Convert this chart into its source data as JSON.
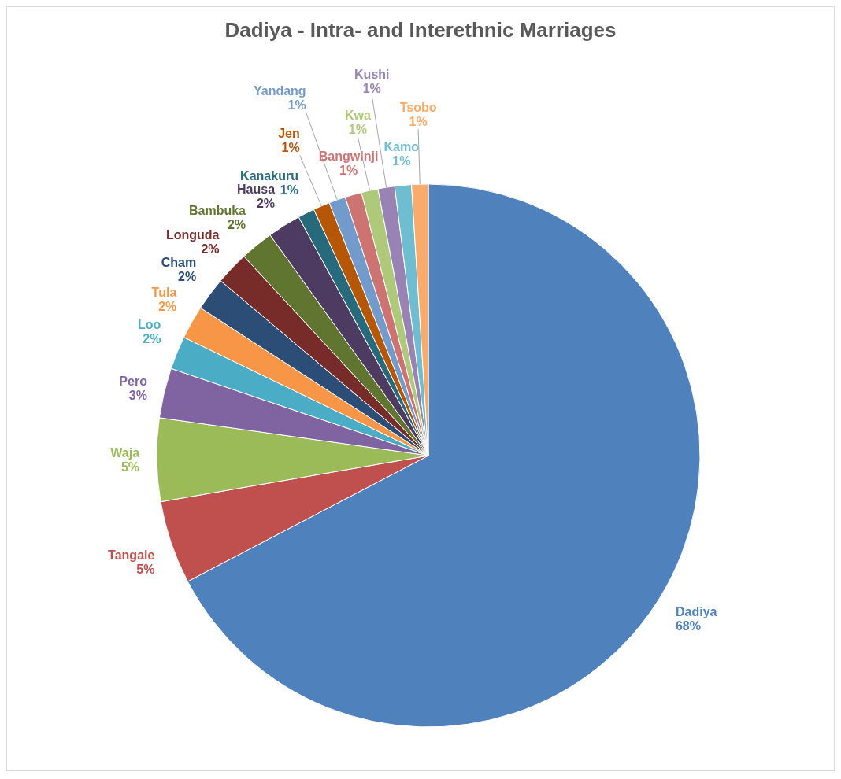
{
  "chart_data": {
    "type": "pie",
    "title": "Dadiya - Intra- and Interethnic Marriages",
    "categories": [
      "Dadiya",
      "Tangale",
      "Waja",
      "Pero",
      "Loo",
      "Tula",
      "Cham",
      "Longuda",
      "Bambuka",
      "Hausa",
      "Kanakuru",
      "Jen",
      "Yandang",
      "Bangwinji",
      "Kwa",
      "Kushi",
      "Kamo",
      "Tsobo"
    ],
    "values": [
      68,
      5,
      5,
      3,
      2,
      2,
      2,
      2,
      2,
      2,
      1,
      1,
      1,
      1,
      1,
      1,
      1,
      1
    ],
    "colors": [
      "#4f81bd",
      "#c0504d",
      "#9bbb59",
      "#8064a2",
      "#4bacc6",
      "#f79646",
      "#2c4d75",
      "#772c2a",
      "#5f7530",
      "#4d3b62",
      "#276a7c",
      "#b65708",
      "#729aca",
      "#cd7371",
      "#afc97a",
      "#9983b5",
      "#6fbdd1",
      "#f9ab6b"
    ],
    "value_labels": [
      "68%",
      "5%",
      "5%",
      "3%",
      "2%",
      "2%",
      "2%",
      "2%",
      "2%",
      "2%",
      "1%",
      "1%",
      "1%",
      "1%",
      "1%",
      "1%",
      "1%",
      "1%"
    ]
  }
}
